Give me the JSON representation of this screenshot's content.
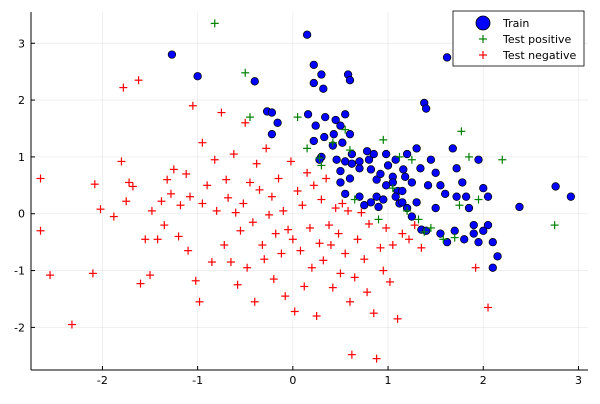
{
  "chart_data": {
    "type": "scatter",
    "title": "",
    "xlabel": "",
    "ylabel": "",
    "xlim": [
      -2.75,
      3.1
    ],
    "ylim": [
      -2.75,
      3.55
    ],
    "xticks": [
      -2,
      -1,
      0,
      1,
      2,
      3
    ],
    "xtick_labels": [
      "-2",
      "-1",
      "0",
      "1",
      "2",
      "3"
    ],
    "yticks": [
      -2,
      -1,
      0,
      1,
      2,
      3
    ],
    "ytick_labels": [
      "-2",
      "-1",
      "0",
      "1",
      "2",
      "3"
    ],
    "grid": true,
    "legend_position": "top-right",
    "series": [
      {
        "name": "Train",
        "marker": "circle",
        "color": "#0000ff",
        "points": [
          [
            -1.27,
            2.8
          ],
          [
            -1.0,
            2.42
          ],
          [
            -0.4,
            2.33
          ],
          [
            -0.27,
            1.8
          ],
          [
            -0.22,
            1.78
          ],
          [
            -0.22,
            1.4
          ],
          [
            -0.16,
            1.6
          ],
          [
            0.15,
            3.15
          ],
          [
            0.22,
            2.62
          ],
          [
            0.22,
            2.3
          ],
          [
            0.3,
            2.45
          ],
          [
            0.32,
            2.2
          ],
          [
            0.58,
            2.45
          ],
          [
            0.6,
            2.35
          ],
          [
            0.16,
            1.75
          ],
          [
            0.24,
            1.55
          ],
          [
            0.34,
            1.7
          ],
          [
            0.45,
            1.65
          ],
          [
            0.5,
            1.55
          ],
          [
            0.55,
            1.75
          ],
          [
            0.33,
            1.35
          ],
          [
            0.43,
            1.4
          ],
          [
            0.22,
            1.28
          ],
          [
            0.3,
            1.0
          ],
          [
            0.42,
            1.2
          ],
          [
            0.52,
            1.25
          ],
          [
            0.6,
            1.4
          ],
          [
            0.28,
            0.95
          ],
          [
            0.46,
            0.95
          ],
          [
            0.55,
            0.92
          ],
          [
            0.62,
            0.88
          ],
          [
            0.7,
            0.8
          ],
          [
            0.78,
            1.1
          ],
          [
            0.8,
            0.95
          ],
          [
            0.82,
            0.78
          ],
          [
            0.85,
            1.05
          ],
          [
            0.88,
            0.6
          ],
          [
            0.92,
            0.7
          ],
          [
            0.98,
            1.05
          ],
          [
            1.0,
            0.85
          ],
          [
            1.05,
            0.65
          ],
          [
            1.08,
            0.95
          ],
          [
            1.1,
            0.4
          ],
          [
            1.16,
            0.78
          ],
          [
            1.2,
            1.05
          ],
          [
            1.25,
            0.55
          ],
          [
            1.3,
            1.15
          ],
          [
            1.34,
            0.8
          ],
          [
            1.38,
            1.95
          ],
          [
            1.4,
            1.85
          ],
          [
            1.45,
            0.95
          ],
          [
            1.5,
            0.72
          ],
          [
            1.55,
            0.5
          ],
          [
            1.6,
            0.35
          ],
          [
            1.62,
            2.75
          ],
          [
            1.68,
            1.15
          ],
          [
            1.72,
            0.8
          ],
          [
            1.78,
            0.55
          ],
          [
            1.82,
            0.3
          ],
          [
            1.85,
            0.1
          ],
          [
            1.9,
            -0.35
          ],
          [
            1.95,
            0.95
          ],
          [
            2.0,
            0.45
          ],
          [
            2.05,
            0.3
          ],
          [
            2.05,
            -0.2
          ],
          [
            2.1,
            -0.5
          ],
          [
            2.15,
            -0.75
          ],
          [
            2.1,
            -0.95
          ],
          [
            2.38,
            0.12
          ],
          [
            2.76,
            0.48
          ],
          [
            2.92,
            0.3
          ],
          [
            0.5,
            0.55
          ],
          [
            0.55,
            0.35
          ],
          [
            0.6,
            0.62
          ],
          [
            0.7,
            0.3
          ],
          [
            0.75,
            0.15
          ],
          [
            0.82,
            0.2
          ],
          [
            0.88,
            0.3
          ],
          [
            0.9,
            0.12
          ],
          [
            0.95,
            0.25
          ],
          [
            1.05,
            0.55
          ],
          [
            1.12,
            0.18
          ],
          [
            1.15,
            0.4
          ],
          [
            1.2,
            0.1
          ],
          [
            1.25,
            -0.05
          ],
          [
            1.3,
            0.2
          ],
          [
            1.35,
            -0.28
          ],
          [
            1.4,
            -0.3
          ],
          [
            1.42,
            0.5
          ],
          [
            1.5,
            0.1
          ],
          [
            1.55,
            -0.35
          ],
          [
            1.62,
            -0.5
          ],
          [
            1.7,
            -0.3
          ],
          [
            1.72,
            0.3
          ],
          [
            1.8,
            -0.45
          ],
          [
            1.9,
            -0.2
          ],
          [
            1.95,
            -0.5
          ],
          [
            2.0,
            -0.3
          ],
          [
            1.15,
            0.2
          ],
          [
            0.5,
            0.75
          ],
          [
            0.62,
            1.05
          ],
          [
            0.7,
            0.92
          ],
          [
            0.98,
            0.5
          ],
          [
            1.08,
            0.3
          ],
          [
            1.18,
            0.65
          ]
        ]
      },
      {
        "name": "Test positive",
        "marker": "cross",
        "color": "#008000",
        "points": [
          [
            -0.82,
            3.35
          ],
          [
            -0.5,
            2.48
          ],
          [
            -0.45,
            1.7
          ],
          [
            0.05,
            1.7
          ],
          [
            0.15,
            1.15
          ],
          [
            0.28,
            0.98
          ],
          [
            0.42,
            1.25
          ],
          [
            0.55,
            1.48
          ],
          [
            0.6,
            1.12
          ],
          [
            0.95,
            1.3
          ],
          [
            1.05,
            0.45
          ],
          [
            1.12,
            1.0
          ],
          [
            1.2,
            0.05
          ],
          [
            1.25,
            0.95
          ],
          [
            1.32,
            -0.1
          ],
          [
            1.45,
            -0.25
          ],
          [
            1.58,
            -0.45
          ],
          [
            1.7,
            -0.42
          ],
          [
            1.75,
            0.15
          ],
          [
            1.77,
            1.45
          ],
          [
            1.85,
            1.0
          ],
          [
            1.95,
            0.25
          ],
          [
            2.2,
            0.95
          ],
          [
            2.75,
            -0.2
          ],
          [
            0.3,
            0.85
          ],
          [
            0.65,
            0.25
          ],
          [
            0.9,
            -0.1
          ],
          [
            1.38,
            -0.32
          ]
        ]
      },
      {
        "name": "Test negative",
        "marker": "cross",
        "color": "#ff0000",
        "points": [
          [
            -2.65,
            0.62
          ],
          [
            -2.65,
            -0.3
          ],
          [
            -2.55,
            -1.08
          ],
          [
            -2.32,
            -1.95
          ],
          [
            -2.1,
            -1.05
          ],
          [
            -2.08,
            0.52
          ],
          [
            -2.02,
            0.08
          ],
          [
            -1.88,
            -0.05
          ],
          [
            -1.8,
            0.92
          ],
          [
            -1.78,
            2.22
          ],
          [
            -1.75,
            0.22
          ],
          [
            -1.72,
            0.55
          ],
          [
            -1.68,
            0.48
          ],
          [
            -1.62,
            2.35
          ],
          [
            -1.6,
            -1.23
          ],
          [
            -1.55,
            -0.45
          ],
          [
            -1.5,
            -1.08
          ],
          [
            -1.48,
            0.05
          ],
          [
            -1.42,
            -0.45
          ],
          [
            -1.38,
            0.22
          ],
          [
            -1.32,
            0.6
          ],
          [
            -1.28,
            0.35
          ],
          [
            -1.25,
            0.78
          ],
          [
            -1.2,
            -0.4
          ],
          [
            -1.18,
            0.15
          ],
          [
            -1.12,
            0.7
          ],
          [
            -1.1,
            -0.65
          ],
          [
            -1.08,
            0.3
          ],
          [
            -1.05,
            1.9
          ],
          [
            -1.02,
            -1.18
          ],
          [
            -0.98,
            -1.55
          ],
          [
            -0.95,
            0.18
          ],
          [
            -0.9,
            0.5
          ],
          [
            -0.85,
            -0.85
          ],
          [
            -0.82,
            0.95
          ],
          [
            -0.8,
            0.05
          ],
          [
            -0.75,
            1.78
          ],
          [
            -0.72,
            -0.55
          ],
          [
            -0.7,
            0.6
          ],
          [
            -0.68,
            0.28
          ],
          [
            -0.65,
            -0.85
          ],
          [
            -0.62,
            1.05
          ],
          [
            -0.6,
            0.02
          ],
          [
            -0.58,
            -1.25
          ],
          [
            -0.55,
            -0.3
          ],
          [
            -0.52,
            0.18
          ],
          [
            -0.5,
            1.6
          ],
          [
            -0.48,
            -0.95
          ],
          [
            -0.45,
            0.55
          ],
          [
            -0.42,
            -0.15
          ],
          [
            -0.4,
            -1.55
          ],
          [
            -0.38,
            0.88
          ],
          [
            -0.35,
            0.42
          ],
          [
            -0.32,
            -0.55
          ],
          [
            -0.28,
            1.15
          ],
          [
            -0.25,
            -0.02
          ],
          [
            -0.22,
            0.3
          ],
          [
            -0.2,
            -1.15
          ],
          [
            -0.18,
            -0.35
          ],
          [
            -0.15,
            0.62
          ],
          [
            -0.12,
            -0.7
          ],
          [
            -0.1,
            0.05
          ],
          [
            -0.08,
            -1.45
          ],
          [
            -0.05,
            -0.28
          ],
          [
            -0.02,
            0.92
          ],
          [
            0.0,
            -0.45
          ],
          [
            0.02,
            -1.72
          ],
          [
            0.05,
            0.4
          ],
          [
            0.08,
            -0.65
          ],
          [
            0.1,
            0.15
          ],
          [
            0.12,
            -1.28
          ],
          [
            0.15,
            0.72
          ],
          [
            0.18,
            -0.25
          ],
          [
            0.2,
            -0.95
          ],
          [
            0.22,
            0.5
          ],
          [
            0.25,
            -1.8
          ],
          [
            0.28,
            -0.52
          ],
          [
            0.3,
            0.25
          ],
          [
            0.32,
            -0.82
          ],
          [
            0.35,
            0.62
          ],
          [
            0.38,
            -0.2
          ],
          [
            0.4,
            -0.55
          ],
          [
            0.42,
            -1.3
          ],
          [
            0.45,
            0.1
          ],
          [
            0.48,
            -0.35
          ],
          [
            0.5,
            -1.05
          ],
          [
            0.52,
            0.18
          ],
          [
            0.55,
            -0.7
          ],
          [
            0.58,
            0.05
          ],
          [
            0.6,
            -1.55
          ],
          [
            0.62,
            -2.48
          ],
          [
            0.65,
            -1.12
          ],
          [
            0.68,
            -0.45
          ],
          [
            0.72,
            0.02
          ],
          [
            0.75,
            -0.8
          ],
          [
            0.78,
            -1.38
          ],
          [
            0.8,
            -0.18
          ],
          [
            0.85,
            -1.75
          ],
          [
            0.88,
            -2.55
          ],
          [
            0.92,
            -0.6
          ],
          [
            0.95,
            -1.0
          ],
          [
            0.98,
            -0.25
          ],
          [
            1.02,
            -1.2
          ],
          [
            1.05,
            -0.55
          ],
          [
            1.1,
            -1.85
          ],
          [
            1.15,
            -0.35
          ],
          [
            1.22,
            -0.45
          ],
          [
            1.28,
            -0.2
          ],
          [
            1.35,
            -0.6
          ],
          [
            1.92,
            -0.95
          ],
          [
            2.05,
            -1.65
          ],
          [
            -0.95,
            1.25
          ],
          [
            -1.35,
            -0.2
          ],
          [
            -0.3,
            -0.8
          ]
        ]
      }
    ]
  },
  "legend": {
    "items": [
      {
        "label": "Train",
        "color": "#0000ff",
        "marker": "circle"
      },
      {
        "label": "Test positive",
        "color": "#008000",
        "marker": "cross"
      },
      {
        "label": "Test negative",
        "color": "#ff0000",
        "marker": "cross"
      }
    ]
  }
}
